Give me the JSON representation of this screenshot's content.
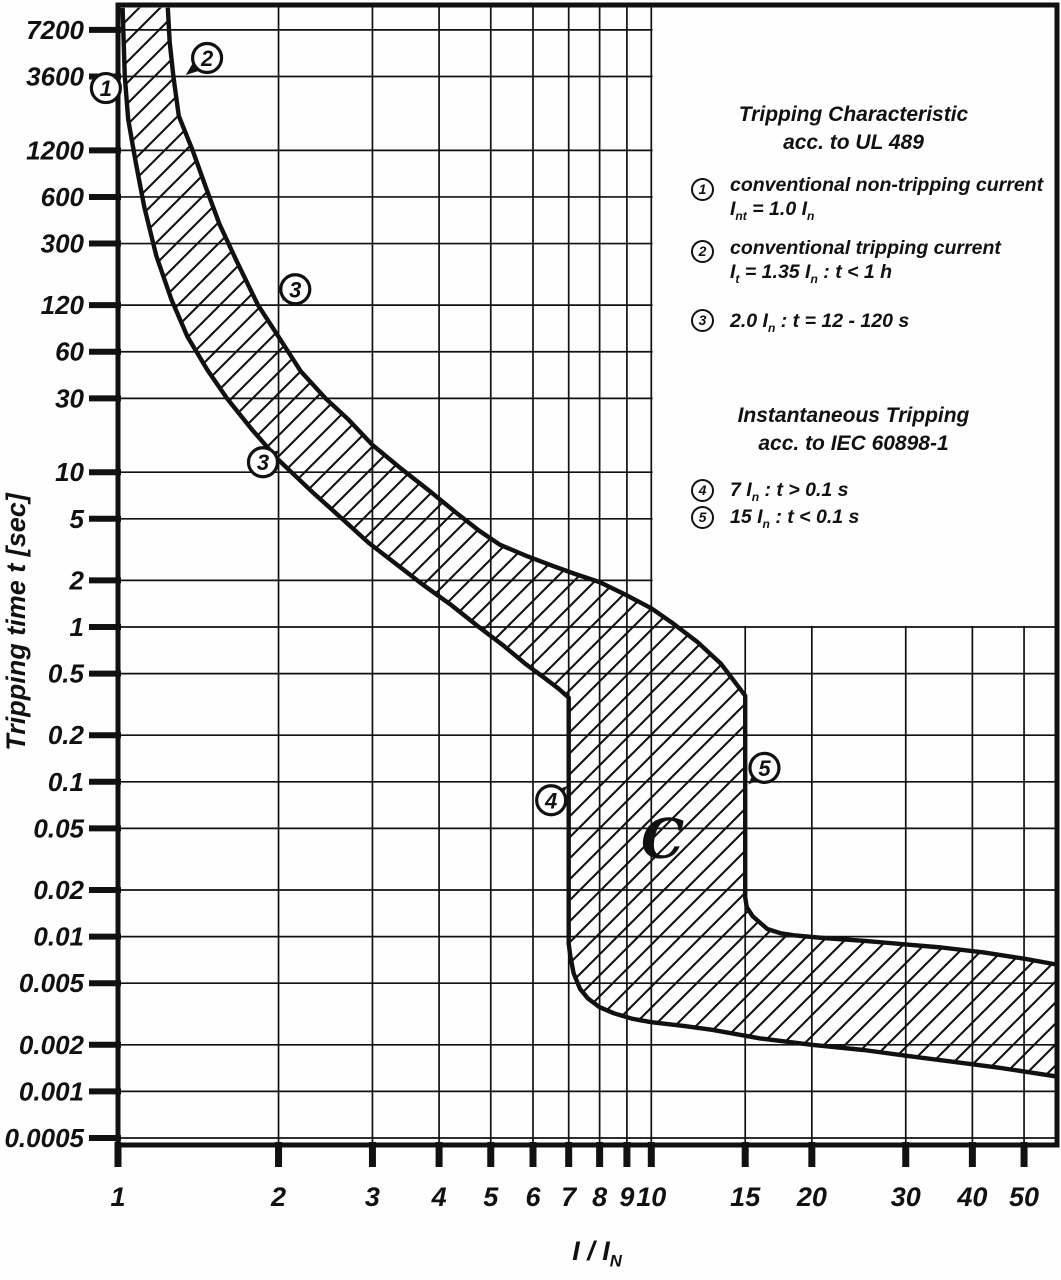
{
  "chart_data": {
    "type": "area",
    "title": "",
    "xlabel": "I / I|N|",
    "ylabel": "Tripping time t [sec]",
    "x_scale": "log",
    "y_scale": "log",
    "x_range": [
      1,
      57.5
    ],
    "y_range": [
      0.00045,
      10400
    ],
    "grid": true,
    "x_ticks": [
      "1",
      "2",
      "3",
      "4",
      "5",
      "6",
      "7",
      "8",
      "9",
      "10",
      "15",
      "20",
      "30",
      "40",
      "50"
    ],
    "y_ticks": [
      "7200",
      "3600",
      "1200",
      "600",
      "300",
      "120",
      "60",
      "30",
      "10",
      "5",
      "2",
      "1",
      "0.5",
      "0.2",
      "0.1",
      "0.05",
      "0.02",
      "0.01",
      "0.005",
      "0.002",
      "0.001",
      "0.0005"
    ],
    "band": {
      "name": "C-characteristic tripping band",
      "style": "diagonal-hatch",
      "lower_boundary": [
        [
          1.02,
          10000
        ],
        [
          1.025,
          6000
        ],
        [
          1.03,
          3600
        ],
        [
          1.045,
          1900
        ],
        [
          1.08,
          1000
        ],
        [
          1.12,
          520
        ],
        [
          1.18,
          250
        ],
        [
          1.26,
          130
        ],
        [
          1.35,
          75
        ],
        [
          1.47,
          46
        ],
        [
          1.6,
          30
        ],
        [
          1.78,
          19
        ],
        [
          2.0,
          12
        ],
        [
          2.3,
          7.6
        ],
        [
          2.6,
          5.2
        ],
        [
          2.95,
          3.5
        ],
        [
          3.3,
          2.6
        ],
        [
          3.75,
          1.85
        ],
        [
          4.2,
          1.4
        ],
        [
          4.75,
          1.0
        ],
        [
          5.3,
          0.75
        ],
        [
          5.8,
          0.58
        ],
        [
          6.3,
          0.47
        ],
        [
          6.7,
          0.4
        ],
        [
          7.0,
          0.35
        ],
        [
          7.0,
          0.009
        ],
        [
          7.05,
          0.0075
        ],
        [
          7.15,
          0.0058
        ],
        [
          7.35,
          0.0046
        ],
        [
          7.6,
          0.004
        ],
        [
          8.0,
          0.0035
        ],
        [
          8.5,
          0.0032
        ],
        [
          9.2,
          0.00295
        ],
        [
          10,
          0.0028
        ],
        [
          11.5,
          0.00265
        ],
        [
          13,
          0.0025
        ],
        [
          16,
          0.0022
        ],
        [
          20,
          0.002
        ],
        [
          25,
          0.00185
        ],
        [
          30,
          0.0017
        ],
        [
          37,
          0.00155
        ],
        [
          45,
          0.00142
        ],
        [
          57.5,
          0.00125
        ]
      ],
      "upper_boundary": [
        [
          1.24,
          10000
        ],
        [
          1.25,
          6000
        ],
        [
          1.27,
          3600
        ],
        [
          1.3,
          2000
        ],
        [
          1.38,
          1200
        ],
        [
          1.46,
          700
        ],
        [
          1.55,
          400
        ],
        [
          1.67,
          230
        ],
        [
          1.83,
          120
        ],
        [
          2.0,
          75
        ],
        [
          2.2,
          45
        ],
        [
          2.45,
          30
        ],
        [
          2.7,
          22
        ],
        [
          3.0,
          15
        ],
        [
          3.4,
          10.5
        ],
        [
          3.85,
          7.5
        ],
        [
          4.3,
          5.5
        ],
        [
          4.75,
          4.2
        ],
        [
          5.2,
          3.4
        ],
        [
          5.8,
          2.9
        ],
        [
          6.5,
          2.5
        ],
        [
          7.2,
          2.2
        ],
        [
          8.0,
          1.95
        ],
        [
          9.0,
          1.6
        ],
        [
          10,
          1.32
        ],
        [
          11,
          1.05
        ],
        [
          12.2,
          0.8
        ],
        [
          13.5,
          0.58
        ],
        [
          15,
          0.36
        ],
        [
          15,
          0.018
        ],
        [
          15.1,
          0.0155
        ],
        [
          15.5,
          0.0135
        ],
        [
          16.5,
          0.0112
        ],
        [
          17.5,
          0.0105
        ],
        [
          18.5,
          0.0102
        ],
        [
          21,
          0.0098
        ],
        [
          25,
          0.0094
        ],
        [
          30,
          0.0089
        ],
        [
          35,
          0.0085
        ],
        [
          42,
          0.0079
        ],
        [
          50,
          0.0072
        ],
        [
          57.5,
          0.0066
        ]
      ]
    },
    "region_label": {
      "text": "C",
      "at": [
        10.5,
        0.043
      ]
    },
    "annotations": [
      {
        "label": "1",
        "circle_at": [
          0.949,
          3030
        ],
        "arrow_tip": [
          1.013,
          3740
        ]
      },
      {
        "label": "2",
        "circle_at": [
          1.469,
          4740
        ],
        "arrow_tip": [
          1.34,
          3680
        ]
      },
      {
        "label": "3",
        "circle_at": [
          2.15,
          152
        ],
        "arrow_tip": [
          2.03,
          128
        ]
      },
      {
        "label": "3",
        "circle_at": [
          1.87,
          11.6
        ],
        "arrow_tip": [
          2.01,
          13.9
        ]
      },
      {
        "label": "4",
        "circle_at": [
          6.49,
          0.076
        ],
        "arrow_tip": [
          6.96,
          0.094
        ]
      },
      {
        "label": "5",
        "circle_at": [
          16.3,
          0.123
        ],
        "arrow_tip": [
          15.2,
          0.096
        ]
      }
    ],
    "legend": {
      "sections": [
        {
          "title_lines": [
            "Tripping Characteristic",
            "acc. to UL 489"
          ],
          "items": [
            {
              "marker": "1",
              "lines": [
                "conventional non-tripping current",
                "I|nt| = 1.0 I|n|"
              ]
            },
            {
              "marker": "2",
              "lines": [
                "conventional tripping current",
                "I|t| = 1.35 I|n|  : t < 1 h"
              ]
            },
            {
              "marker": "3",
              "lines": [
                "2.0 I|n|  : t = 12 - 120 s"
              ]
            }
          ]
        },
        {
          "title_lines": [
            "Instantaneous Tripping",
            "acc. to IEC 60898-1"
          ],
          "items": [
            {
              "marker": "4",
              "lines": [
                "7 I|n| : t > 0.1 s"
              ]
            },
            {
              "marker": "5",
              "lines": [
                "15 I|n| : t < 0.1 s"
              ]
            }
          ]
        }
      ]
    },
    "colors": {
      "ink": "#111111",
      "background": "#ffffff"
    }
  }
}
